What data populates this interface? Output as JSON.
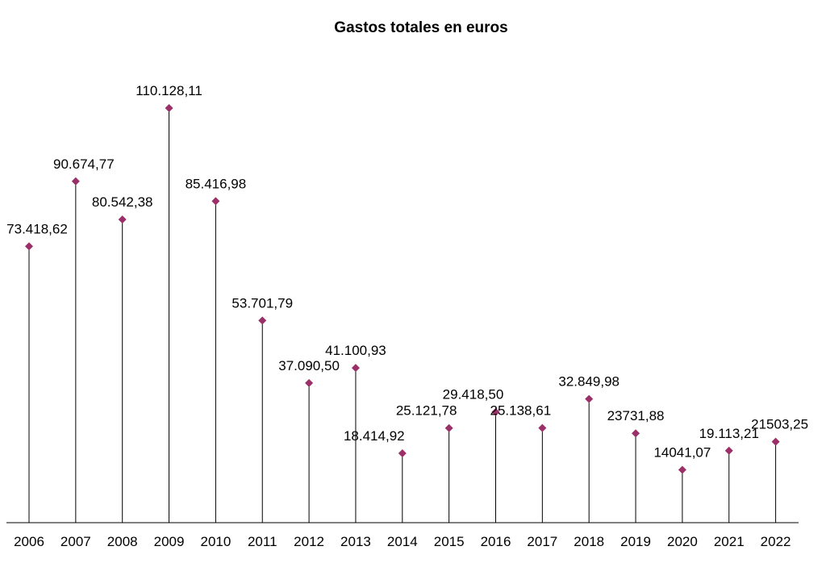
{
  "chart_data": {
    "type": "lollipop",
    "title": "Gastos totales en euros",
    "xlabel": "",
    "ylabel": "",
    "grid": false,
    "legend": "none",
    "ylim": [
      0,
      120000
    ],
    "categories": [
      "2006",
      "2007",
      "2008",
      "2009",
      "2010",
      "2011",
      "2012",
      "2013",
      "2014",
      "2015",
      "2016",
      "2017",
      "2018",
      "2019",
      "2020",
      "2021",
      "2022"
    ],
    "series": [
      {
        "values": [
          73418.62,
          90674.77,
          80542.38,
          110128.11,
          85416.98,
          53701.79,
          37090.5,
          41100.93,
          18414.92,
          25121.78,
          29418.5,
          25138.61,
          32849.98,
          23731.88,
          14041.07,
          19113.21,
          21503.25
        ],
        "labels": [
          "73.418,62",
          "90.674,77",
          "80.542,38",
          "110.128,11",
          "85.416,98",
          "53.701,79",
          "37.090,50",
          "41.100,93",
          "18.414,92",
          "25.121,78",
          "29.418,50",
          "25.138,61",
          "32.849,98",
          "23731,88",
          "14041,07",
          "19.113,21",
          "21503,25"
        ]
      }
    ],
    "marker_color": "#9b3068",
    "stem_color": "#000000",
    "axis_color": "#000000"
  }
}
